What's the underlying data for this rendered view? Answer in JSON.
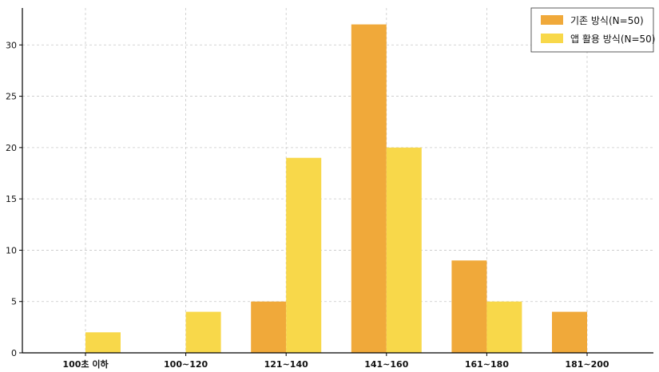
{
  "chart_data": {
    "type": "bar",
    "categories": [
      "100초 이하",
      "100~120",
      "121~140",
      "141~160",
      "161~180",
      "181~200"
    ],
    "series": [
      {
        "name": "기존 방식(N=50)",
        "values": [
          0,
          0,
          5,
          32,
          9,
          4
        ],
        "color": "#F0A93A"
      },
      {
        "name": "앱 활용 방식(N=50)",
        "values": [
          2,
          4,
          19,
          20,
          5,
          0
        ],
        "color": "#F8D84A"
      }
    ],
    "yticks": [
      0,
      5,
      10,
      15,
      20,
      25,
      30
    ],
    "ylim": [
      0,
      33.6
    ],
    "grid": true,
    "legend_position": "top-right"
  }
}
